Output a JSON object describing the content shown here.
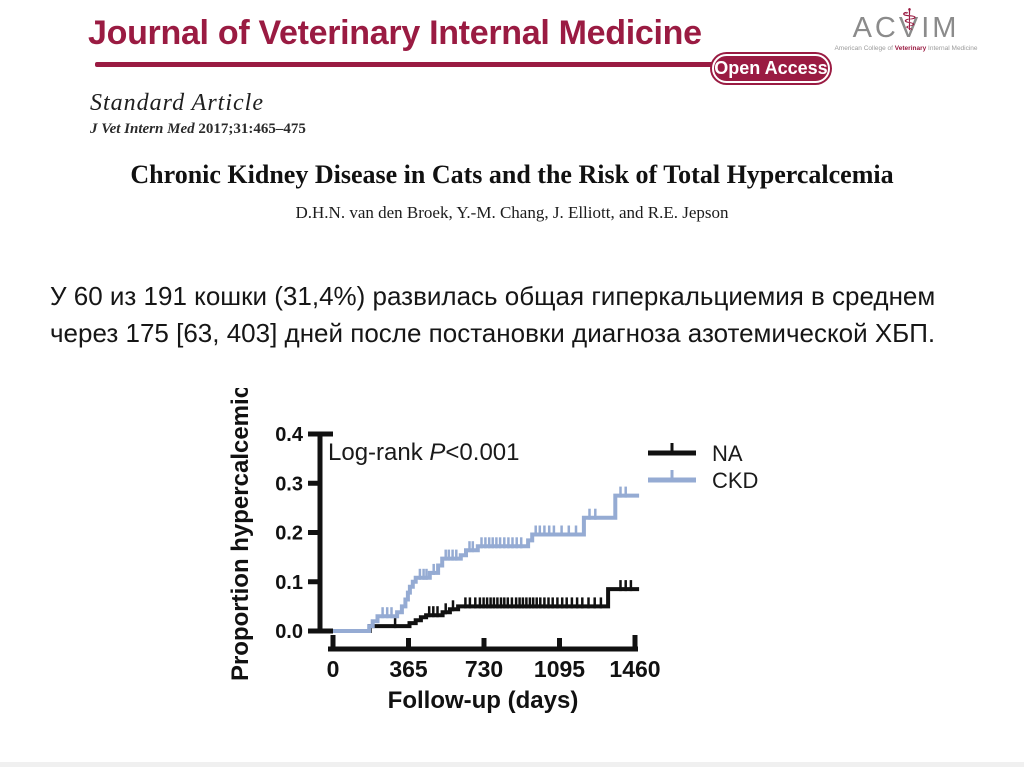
{
  "header": {
    "journal_title": "Journal of Veterinary Internal Medicine",
    "open_access_label": "Open Access",
    "brand_color": "#9a1b42",
    "acvim": {
      "part1": "AC",
      "vchar": "V",
      "part2": "IM",
      "caduceus_glyph": "⚕",
      "sub_pre": "American College of ",
      "sub_highlight": "Veterinary",
      "sub_post": " Internal Medicine"
    }
  },
  "article": {
    "type_label": "Standard Article",
    "citation_journal": "J Vet Intern Med ",
    "citation_ref": "2017;31:465–475",
    "title": "Chronic Kidney Disease in Cats and the Risk of Total Hypercalcemia",
    "authors": "D.H.N. van den Broek, Y.-M. Chang, J. Elliott, and R.E. Jepson"
  },
  "summary": {
    "line1": "У 60 из 191 кошки (31,4%) развилась общая гиперкальциемия в среднем",
    "line2": "через 175 [63, 403] дней после постановки диагноза азотемической ХБП."
  },
  "chart_data": {
    "type": "line",
    "subtype": "kaplan-meier-step",
    "title": "",
    "xlabel": "Follow-up (days)",
    "ylabel": "Proportion hypercalcemic",
    "xlim": [
      0,
      1480
    ],
    "ylim": [
      0,
      0.4
    ],
    "xticks": [
      0,
      365,
      730,
      1095,
      1460
    ],
    "yticks": [
      0.0,
      0.1,
      0.2,
      0.3,
      0.4
    ],
    "grid": false,
    "legend_position": "right",
    "annotation": {
      "pre": "Log-rank ",
      "italic": "P",
      "post": "<0.001"
    },
    "axis_color": "#111111",
    "series": [
      {
        "name": "NA",
        "color": "#111111",
        "end_day": 1480,
        "steps": [
          [
            0,
            0
          ],
          [
            178,
            0.01
          ],
          [
            370,
            0.016
          ],
          [
            400,
            0.022
          ],
          [
            425,
            0.028
          ],
          [
            450,
            0.032
          ],
          [
            530,
            0.038
          ],
          [
            565,
            0.044
          ],
          [
            605,
            0.05
          ],
          [
            1330,
            0.085
          ]
        ],
        "censor_ticks": [
          [
            300,
            0.01
          ],
          [
            465,
            0.032
          ],
          [
            485,
            0.032
          ],
          [
            505,
            0.032
          ],
          [
            545,
            0.038
          ],
          [
            580,
            0.044
          ],
          [
            640,
            0.05
          ],
          [
            662,
            0.05
          ],
          [
            688,
            0.05
          ],
          [
            710,
            0.05
          ],
          [
            728,
            0.05
          ],
          [
            745,
            0.05
          ],
          [
            762,
            0.05
          ],
          [
            778,
            0.05
          ],
          [
            795,
            0.05
          ],
          [
            812,
            0.05
          ],
          [
            828,
            0.05
          ],
          [
            845,
            0.05
          ],
          [
            865,
            0.05
          ],
          [
            885,
            0.05
          ],
          [
            902,
            0.05
          ],
          [
            918,
            0.05
          ],
          [
            935,
            0.05
          ],
          [
            952,
            0.05
          ],
          [
            968,
            0.05
          ],
          [
            985,
            0.05
          ],
          [
            1002,
            0.05
          ],
          [
            1022,
            0.05
          ],
          [
            1042,
            0.05
          ],
          [
            1062,
            0.05
          ],
          [
            1085,
            0.05
          ],
          [
            1108,
            0.05
          ],
          [
            1130,
            0.05
          ],
          [
            1155,
            0.05
          ],
          [
            1180,
            0.05
          ],
          [
            1205,
            0.05
          ],
          [
            1235,
            0.05
          ],
          [
            1265,
            0.05
          ],
          [
            1295,
            0.05
          ],
          [
            1390,
            0.085
          ],
          [
            1415,
            0.085
          ],
          [
            1440,
            0.085
          ]
        ]
      },
      {
        "name": "CKD",
        "color": "#95abd3",
        "end_day": 1480,
        "steps": [
          [
            0,
            0
          ],
          [
            175,
            0.01
          ],
          [
            192,
            0.02
          ],
          [
            215,
            0.03
          ],
          [
            310,
            0.038
          ],
          [
            333,
            0.05
          ],
          [
            350,
            0.064
          ],
          [
            362,
            0.078
          ],
          [
            372,
            0.09
          ],
          [
            386,
            0.1
          ],
          [
            400,
            0.108
          ],
          [
            468,
            0.118
          ],
          [
            508,
            0.133
          ],
          [
            528,
            0.147
          ],
          [
            618,
            0.154
          ],
          [
            643,
            0.164
          ],
          [
            700,
            0.172
          ],
          [
            943,
            0.184
          ],
          [
            963,
            0.196
          ],
          [
            1213,
            0.23
          ],
          [
            1365,
            0.275
          ]
        ],
        "censor_ticks": [
          [
            240,
            0.03
          ],
          [
            262,
            0.03
          ],
          [
            283,
            0.03
          ],
          [
            420,
            0.108
          ],
          [
            438,
            0.108
          ],
          [
            452,
            0.108
          ],
          [
            487,
            0.118
          ],
          [
            545,
            0.147
          ],
          [
            560,
            0.147
          ],
          [
            578,
            0.147
          ],
          [
            596,
            0.147
          ],
          [
            660,
            0.164
          ],
          [
            676,
            0.164
          ],
          [
            718,
            0.172
          ],
          [
            737,
            0.172
          ],
          [
            755,
            0.172
          ],
          [
            772,
            0.172
          ],
          [
            790,
            0.172
          ],
          [
            808,
            0.172
          ],
          [
            828,
            0.172
          ],
          [
            848,
            0.172
          ],
          [
            868,
            0.172
          ],
          [
            888,
            0.172
          ],
          [
            910,
            0.172
          ],
          [
            980,
            0.196
          ],
          [
            1000,
            0.196
          ],
          [
            1022,
            0.196
          ],
          [
            1045,
            0.196
          ],
          [
            1068,
            0.196
          ],
          [
            1105,
            0.196
          ],
          [
            1140,
            0.196
          ],
          [
            1175,
            0.196
          ],
          [
            1240,
            0.23
          ],
          [
            1268,
            0.23
          ],
          [
            1390,
            0.275
          ],
          [
            1415,
            0.275
          ]
        ]
      }
    ]
  }
}
